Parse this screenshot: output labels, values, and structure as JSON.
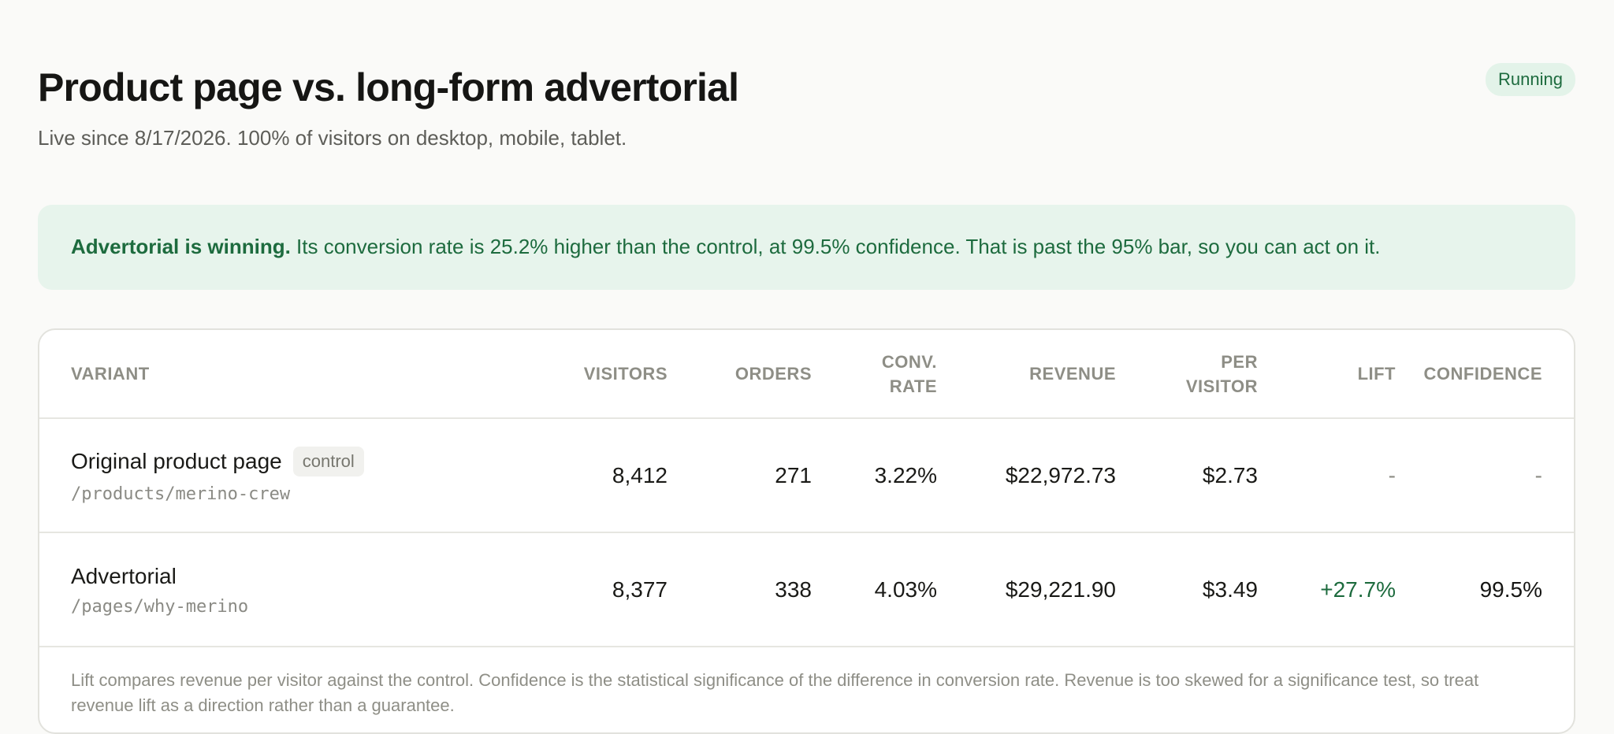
{
  "header": {
    "title": "Product page vs. long-form advertorial",
    "subtitle": "Live since 8/17/2026. 100% of visitors on desktop, mobile, tablet.",
    "status": "Running"
  },
  "banner": {
    "lead": "Advertorial is winning.",
    "text": " Its conversion rate is 25.2% higher than the control, at 99.5% confidence. That is past the 95% bar, so you can act on it."
  },
  "table": {
    "columns": [
      "Variant",
      "Visitors",
      "Orders",
      "Conv. rate",
      "Revenue",
      "Per visitor",
      "Lift",
      "Confidence"
    ],
    "rows": [
      {
        "name": "Original product page",
        "tag": "control",
        "path": "/products/merino-crew",
        "visitors": "8,412",
        "orders": "271",
        "conv_rate": "3.22%",
        "revenue": "$22,972.73",
        "per_visitor": "$2.73",
        "lift": "-",
        "confidence": "-"
      },
      {
        "name": "Advertorial",
        "path": "/pages/why-merino",
        "visitors": "8,377",
        "orders": "338",
        "conv_rate": "4.03%",
        "revenue": "$29,221.90",
        "per_visitor": "$3.49",
        "lift": "+27.7%",
        "confidence": "99.5%"
      }
    ]
  },
  "footnote": "Lift compares revenue per visitor against the control. Confidence is the statistical significance of the difference in conversion rate. Revenue is too skewed for a significance test, so treat revenue lift as a direction rather than a guarantee.",
  "colors": {
    "accent_green": "#1d6b3e",
    "banner_bg": "#e7f4ec",
    "muted_text": "#8e8e86"
  }
}
